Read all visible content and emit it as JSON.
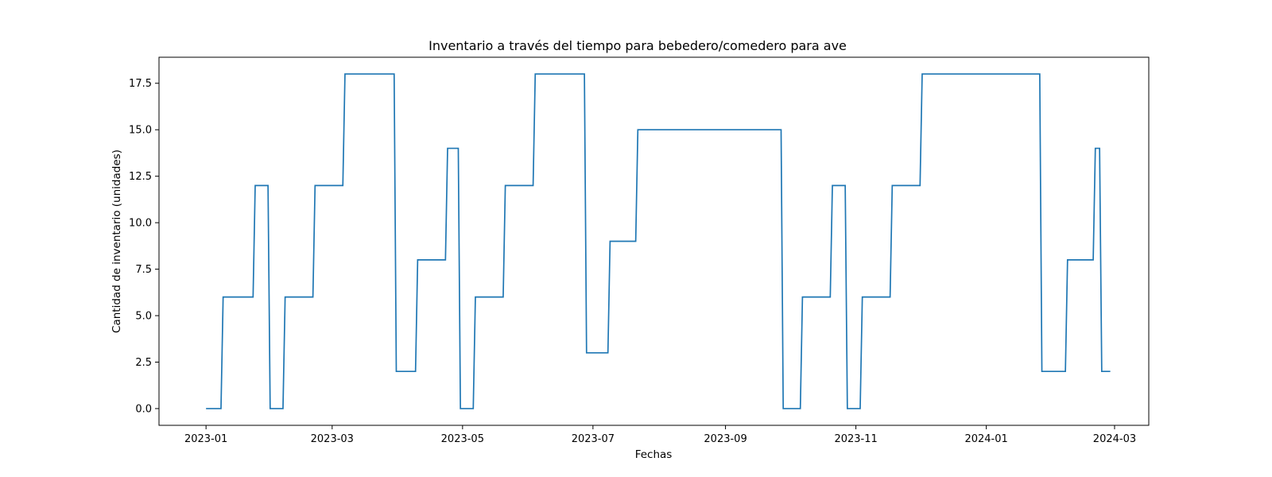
{
  "chart_data": {
    "type": "line",
    "title": "Inventario a través del tiempo para bebedero/comedero para ave",
    "xlabel": "Fechas",
    "ylabel": "Cantidad de inventario (unidades)",
    "xlim": [
      "2022-12-10",
      "2024-03-17"
    ],
    "ylim": [
      -0.9,
      18.9
    ],
    "x_ticks": [
      "2023-01",
      "2023-03",
      "2023-05",
      "2023-07",
      "2023-09",
      "2023-11",
      "2024-01",
      "2024-03"
    ],
    "y_ticks": [
      0.0,
      2.5,
      5.0,
      7.5,
      10.0,
      12.5,
      15.0,
      17.5
    ],
    "y_tick_labels": [
      "0.0",
      "2.5",
      "5.0",
      "7.5",
      "10.0",
      "12.5",
      "15.0",
      "17.5"
    ],
    "grid": false,
    "series": [
      {
        "color": "#1f77b4",
        "points": [
          [
            "2023-01-01",
            0
          ],
          [
            "2023-01-08",
            0
          ],
          [
            "2023-01-09",
            6
          ],
          [
            "2023-01-23",
            6
          ],
          [
            "2023-01-24",
            12
          ],
          [
            "2023-01-30",
            12
          ],
          [
            "2023-01-31",
            0
          ],
          [
            "2023-02-06",
            0
          ],
          [
            "2023-02-07",
            6
          ],
          [
            "2023-02-20",
            6
          ],
          [
            "2023-02-21",
            12
          ],
          [
            "2023-03-06",
            12
          ],
          [
            "2023-03-07",
            18
          ],
          [
            "2023-03-30",
            18
          ],
          [
            "2023-03-31",
            2
          ],
          [
            "2023-04-09",
            2
          ],
          [
            "2023-04-10",
            8
          ],
          [
            "2023-04-23",
            8
          ],
          [
            "2023-04-24",
            14
          ],
          [
            "2023-04-29",
            14
          ],
          [
            "2023-04-30",
            0
          ],
          [
            "2023-05-06",
            0
          ],
          [
            "2023-05-07",
            6
          ],
          [
            "2023-05-20",
            6
          ],
          [
            "2023-05-21",
            12
          ],
          [
            "2023-06-03",
            12
          ],
          [
            "2023-06-04",
            18
          ],
          [
            "2023-06-27",
            18
          ],
          [
            "2023-06-28",
            3
          ],
          [
            "2023-07-08",
            3
          ],
          [
            "2023-07-09",
            9
          ],
          [
            "2023-07-21",
            9
          ],
          [
            "2023-07-22",
            15
          ],
          [
            "2023-09-27",
            15
          ],
          [
            "2023-09-28",
            0
          ],
          [
            "2023-10-06",
            0
          ],
          [
            "2023-10-07",
            6
          ],
          [
            "2023-10-20",
            6
          ],
          [
            "2023-10-21",
            12
          ],
          [
            "2023-10-27",
            12
          ],
          [
            "2023-10-28",
            0
          ],
          [
            "2023-11-03",
            0
          ],
          [
            "2023-11-04",
            6
          ],
          [
            "2023-11-17",
            6
          ],
          [
            "2023-11-18",
            12
          ],
          [
            "2023-12-01",
            12
          ],
          [
            "2023-12-02",
            18
          ],
          [
            "2024-01-26",
            18
          ],
          [
            "2024-01-27",
            2
          ],
          [
            "2024-02-07",
            2
          ],
          [
            "2024-02-08",
            8
          ],
          [
            "2024-02-20",
            8
          ],
          [
            "2024-02-21",
            14
          ],
          [
            "2024-02-23",
            14
          ],
          [
            "2024-02-24",
            2
          ],
          [
            "2024-02-28",
            2
          ]
        ]
      }
    ]
  }
}
